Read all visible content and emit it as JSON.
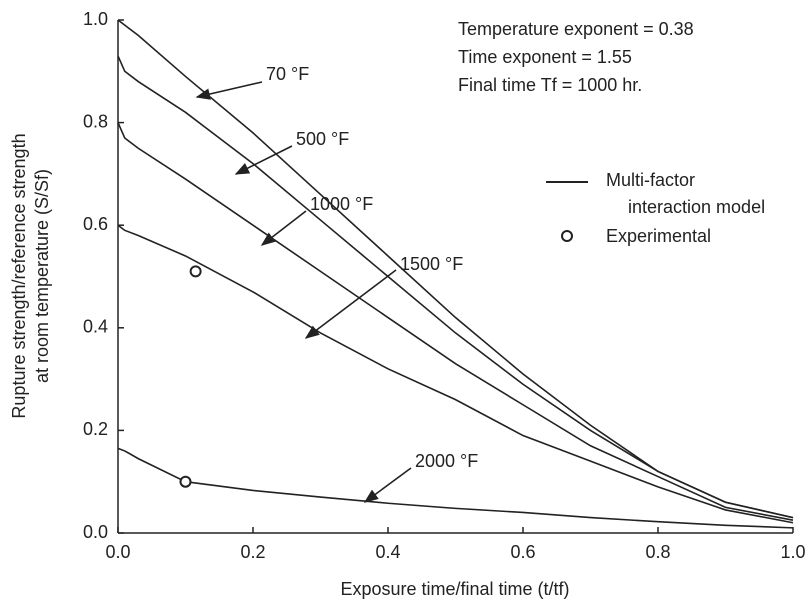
{
  "chart_data": {
    "type": "line",
    "xlabel": "Exposure time/final time (t/tf)",
    "ylabel": [
      "Rupture strength/reference strength",
      "at room temperature (S/Sf)"
    ],
    "annotations": [
      "Temperature exponent = 0.38",
      "Time exponent = 1.55",
      "Final time Tf = 1000 hr."
    ],
    "legend": {
      "line": [
        "Multi-factor",
        "interaction model"
      ],
      "marker": "Experimental"
    },
    "color": "#222222",
    "xlim": [
      0,
      1
    ],
    "ylim": [
      0,
      1
    ],
    "xticks": [
      {
        "value": 0,
        "label": "0.0"
      },
      0.2,
      0.4,
      0.6,
      0.8,
      {
        "value": 1,
        "label": "1.0"
      }
    ],
    "yticks": [
      {
        "value": 0,
        "label": "0.0"
      },
      0.2,
      0.4,
      0.6,
      0.8,
      {
        "value": 1,
        "label": "1.0"
      }
    ],
    "x": [
      0,
      0.01,
      0.03,
      0.1,
      0.2,
      0.3,
      0.4,
      0.5,
      0.6,
      0.7,
      0.8,
      0.9,
      1.0
    ],
    "series": [
      {
        "name": "70 °F",
        "values": [
          1.0,
          0.99,
          0.97,
          0.89,
          0.78,
          0.66,
          0.54,
          0.42,
          0.31,
          0.21,
          0.12,
          0.06,
          0.03
        ]
      },
      {
        "name": "500 °F",
        "values": [
          0.93,
          0.9,
          0.88,
          0.82,
          0.72,
          0.61,
          0.5,
          0.39,
          0.29,
          0.2,
          0.12,
          0.06,
          0.03
        ]
      },
      {
        "name": "1000 °F",
        "values": [
          0.8,
          0.77,
          0.75,
          0.69,
          0.6,
          0.51,
          0.42,
          0.33,
          0.25,
          0.17,
          0.11,
          0.05,
          0.025
        ]
      },
      {
        "name": "1500 °F",
        "values": [
          0.6,
          0.59,
          0.58,
          0.54,
          0.47,
          0.39,
          0.32,
          0.26,
          0.19,
          0.14,
          0.09,
          0.045,
          0.02
        ]
      },
      {
        "name": "2000 °F",
        "values": [
          0.165,
          0.16,
          0.145,
          0.1,
          0.083,
          0.07,
          0.058,
          0.048,
          0.04,
          0.03,
          0.022,
          0.015,
          0.01
        ]
      }
    ],
    "experimental": {
      "x": [
        0.115,
        0.1
      ],
      "y": [
        0.51,
        0.1
      ]
    }
  }
}
